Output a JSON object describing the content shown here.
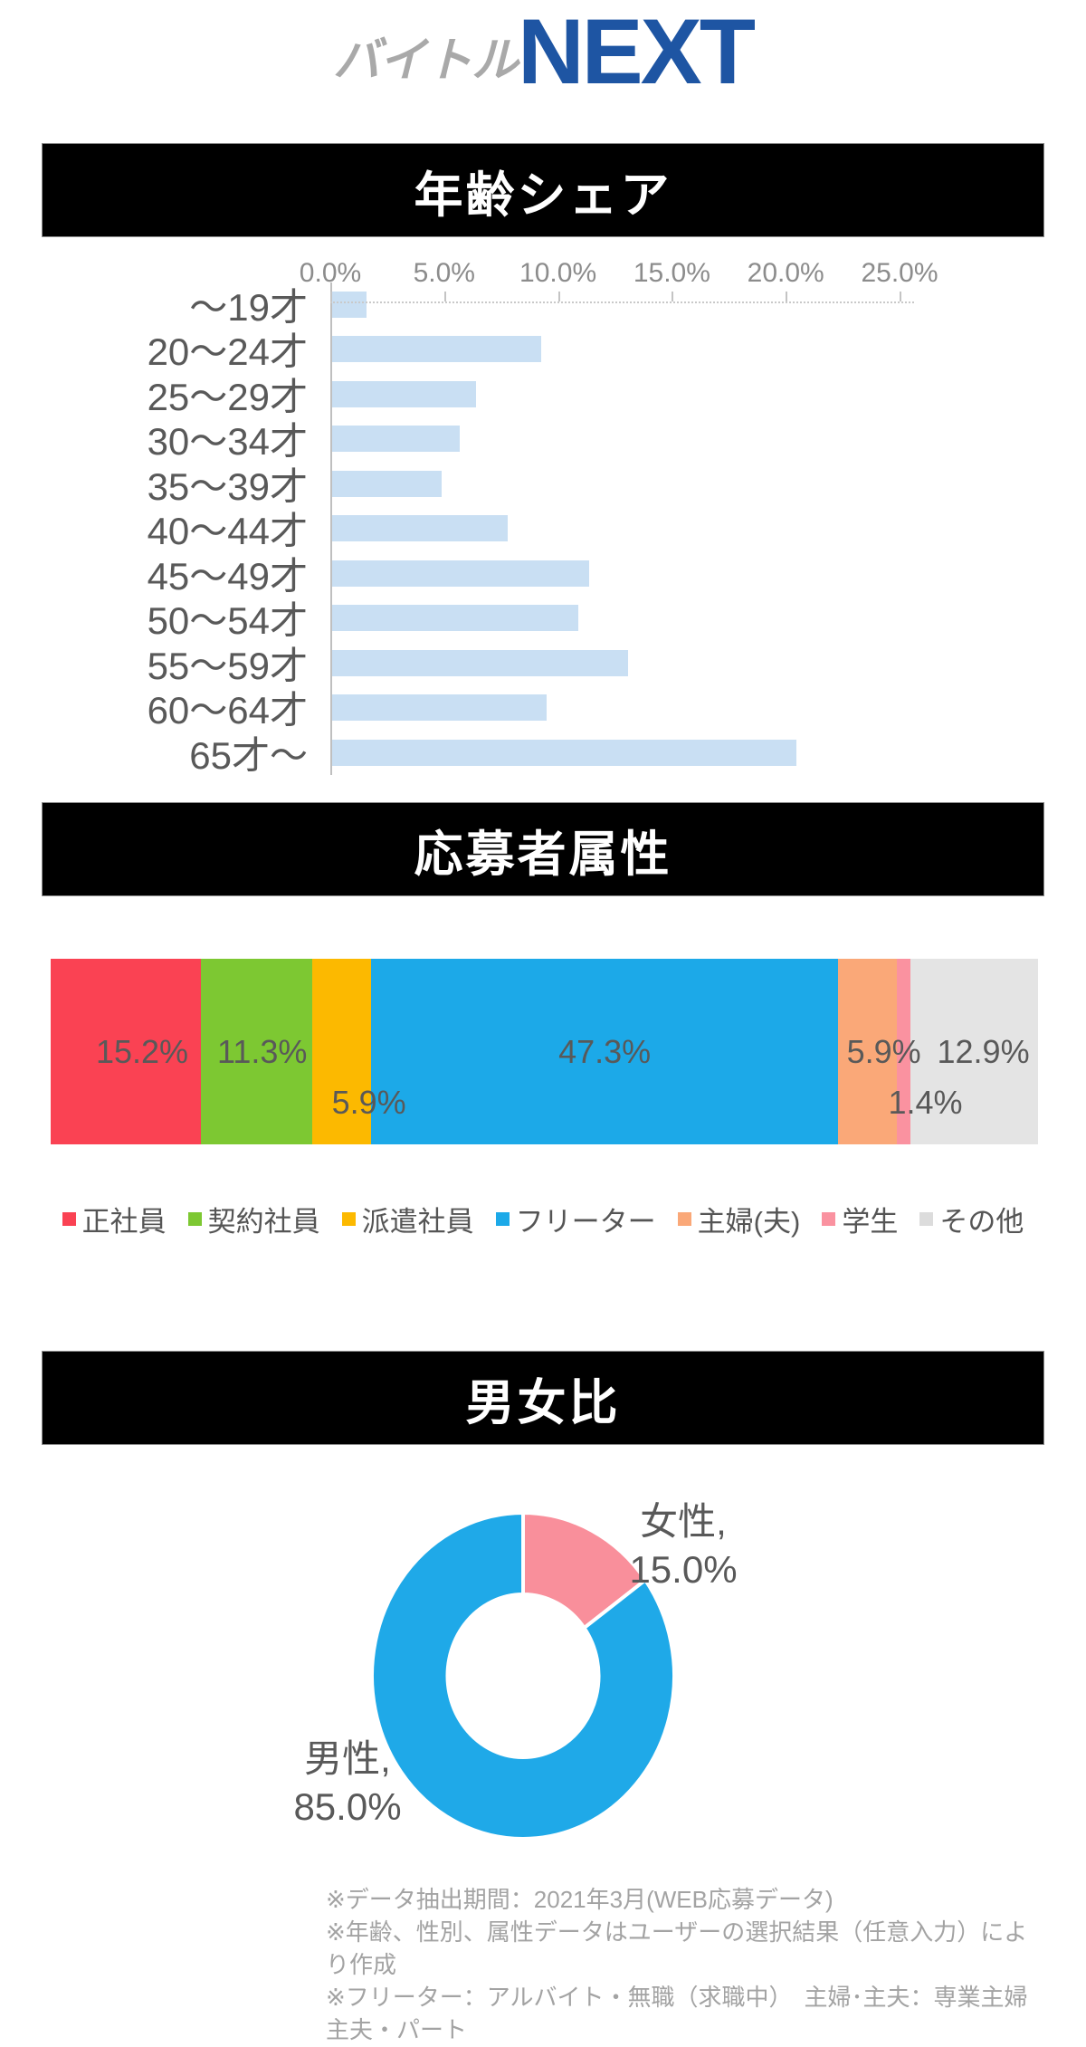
{
  "logo": {
    "gray": "バイトル",
    "blue": "NEXT"
  },
  "chart_data": [
    {
      "type": "bar",
      "title": "年齢シェア",
      "orientation": "horizontal",
      "categories": [
        "～19才",
        "20～24才",
        "25～29才",
        "30～34才",
        "35～39才",
        "40～44才",
        "45～49才",
        "50～54才",
        "55～59才",
        "60～64才",
        "65才～"
      ],
      "values": [
        1.5,
        9.2,
        6.3,
        5.6,
        4.8,
        7.7,
        11.3,
        10.8,
        13.0,
        9.4,
        20.4
      ],
      "unit": "%",
      "xlabel": "",
      "ylabel": "",
      "xlim": [
        0,
        25
      ],
      "x_tick_step": 5,
      "x_tick_labels": [
        "0.0%",
        "5.0%",
        "10.0%",
        "15.0%",
        "20.0%",
        "25.0%"
      ],
      "grid": false,
      "bar_color": "#c9dff3",
      "axis_color": "#bfbfbf"
    },
    {
      "type": "stacked-bar",
      "title": "応募者属性",
      "total": 99.9,
      "segments": [
        {
          "name": "正社員",
          "value": 15.2,
          "label": "15.2%",
          "color": "#fa4253",
          "label_offset": "middle",
          "label_dx": 18
        },
        {
          "name": "契約社員",
          "value": 11.3,
          "label": "11.3%",
          "color": "#7dc832",
          "label_offset": "middle",
          "label_dx": 6
        },
        {
          "name": "派遣社員",
          "value": 5.9,
          "label": "5.9%",
          "color": "#fcb900",
          "label_offset": "below",
          "label_dx": 30
        },
        {
          "name": "フリーター",
          "value": 47.3,
          "label": "47.3%",
          "color": "#1ca9e8",
          "label_offset": "middle",
          "label_dx": 0
        },
        {
          "name": "主婦(夫)",
          "value": 5.9,
          "label": "5.9%",
          "color": "#faa878",
          "label_offset": "middle",
          "label_dx": 18
        },
        {
          "name": "学生",
          "value": 1.4,
          "label": "1.4%",
          "color": "#fa92a0",
          "label_offset": "below",
          "label_dx": 24
        },
        {
          "name": "その他",
          "value": 12.9,
          "label": "12.9%",
          "color": "#e4e4e4",
          "label_offset": "middle",
          "label_dx": 10
        }
      ],
      "legend": [
        {
          "label": "正社員",
          "color": "#fa4253"
        },
        {
          "label": "契約社員",
          "color": "#7dc832"
        },
        {
          "label": "派遣社員",
          "color": "#fcb900"
        },
        {
          "label": "フリーター",
          "color": "#1ca9e8"
        },
        {
          "label": "主婦(夫)",
          "color": "#faa878"
        },
        {
          "label": "学生",
          "color": "#fa92a0"
        },
        {
          "label": "その他",
          "color": "#dcdcdc"
        }
      ],
      "legend_position": "bottom"
    },
    {
      "type": "donut",
      "title": "男女比",
      "start_angle_deg": 0,
      "direction": "clockwise",
      "hole_ratio": 0.5,
      "slices": [
        {
          "name": "女性",
          "value": 15.0,
          "color": "#f98f9b",
          "callout_line1": "女性,",
          "callout_line2": "15.0%"
        },
        {
          "name": "男性",
          "value": 85.0,
          "color": "#1fa9e8",
          "callout_line1": "男性,",
          "callout_line2": "85.0%"
        }
      ]
    }
  ],
  "footnotes": [
    "※データ抽出期間：2021年3月(WEB応募データ)",
    "※年齢、性別、属性データはユーザーの選択結果（任意入力）により作成",
    "※フリーター：アルバイト・無職（求職中）　主婦･主夫：専業主婦主夫・パート"
  ]
}
